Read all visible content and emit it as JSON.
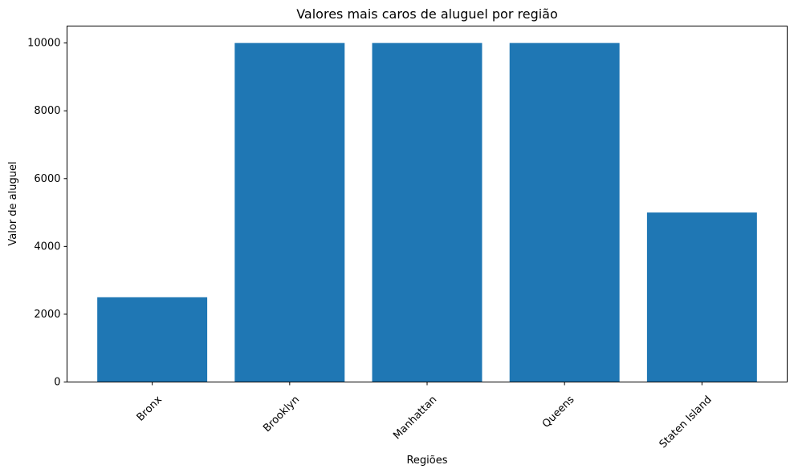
{
  "chart_data": {
    "type": "bar",
    "title": "Valores mais caros de aluguel por região",
    "xlabel": "Regiões",
    "ylabel": "Valor de aluguel",
    "categories": [
      "Bronx",
      "Brooklyn",
      "Manhattan",
      "Queens",
      "Staten Island"
    ],
    "values": [
      2500,
      10000,
      10000,
      10000,
      5000
    ],
    "ylim": [
      0,
      10500
    ],
    "yticks": [
      0,
      2000,
      4000,
      6000,
      8000,
      10000
    ],
    "ytick_labels": [
      "0",
      "2000",
      "4000",
      "6000",
      "8000",
      "10000"
    ],
    "xtick_rotation_deg": -45,
    "grid": false,
    "legend": "none",
    "colors": {
      "bar": "#1f77b4",
      "axis": "#000000",
      "background": "#ffffff"
    }
  }
}
